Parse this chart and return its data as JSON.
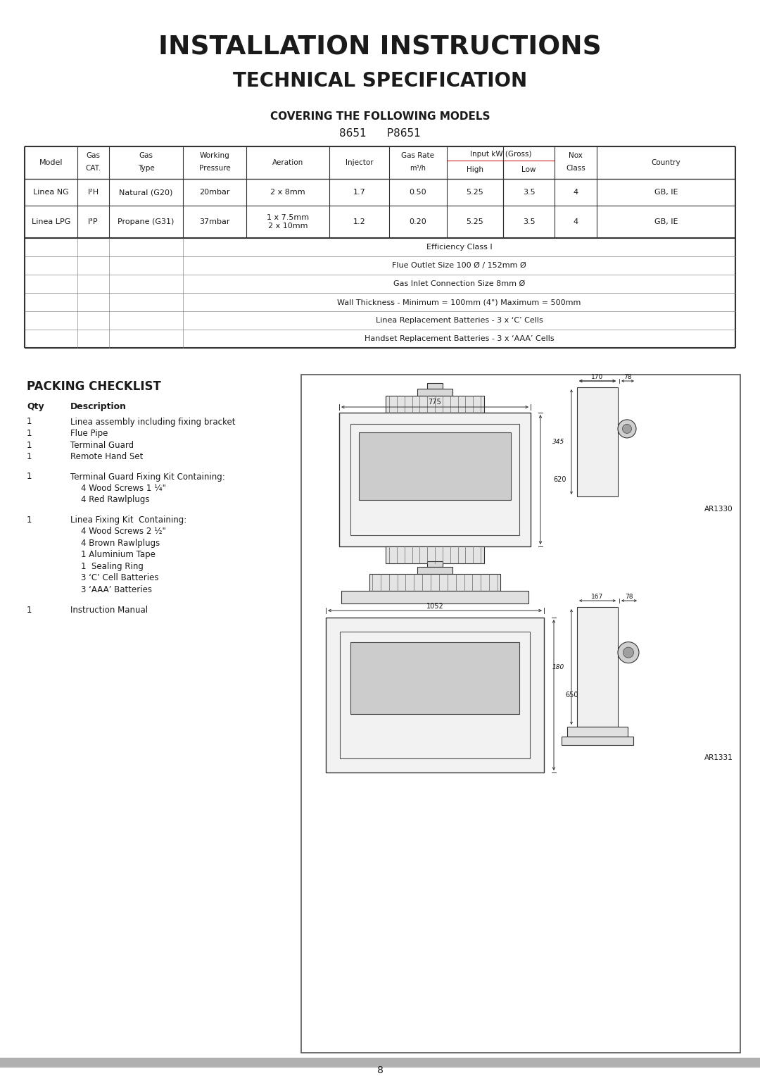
{
  "title1": "INSTALLATION INSTRUCTIONS",
  "title2": "TECHNICAL SPECIFICATION",
  "covering_label": "COVERING THE FOLLOWING MODELS",
  "models": "8651      P8651",
  "table_data": [
    [
      "Linea NG",
      "I²H",
      "Natural (G20)",
      "20mbar",
      "2 x 8mm",
      "1.7",
      "0.50",
      "5.25",
      "3.5",
      "4",
      "GB, IE"
    ],
    [
      "Linea LPG",
      "I³P",
      "Propane (G31)",
      "37mbar",
      "1 x 7.5mm\n2 x 10mm",
      "1.2",
      "0.20",
      "5.25",
      "3.5",
      "4",
      "GB, IE"
    ]
  ],
  "extra_rows": [
    "Efficiency Class I",
    "Flue Outlet Size 100 Ø / 152mm Ø",
    "Gas Inlet Connection Size 8mm Ø",
    "Wall Thickness - Minimum = 100mm (4\") Maximum = 500mm",
    "Linea Replacement Batteries - 3 x ‘C’ Cells",
    "Handset Replacement Batteries - 3 x ‘AAA’ Cells"
  ],
  "packing_title": "PACKING CHECKLIST",
  "packing_col1": "Qty",
  "packing_col2": "Description",
  "packing_items": [
    [
      "1",
      "Linea assembly including fixing bracket"
    ],
    [
      "1",
      "Flue Pipe"
    ],
    [
      "1",
      "Terminal Guard"
    ],
    [
      "1",
      "Remote Hand Set"
    ],
    [
      "gap",
      ""
    ],
    [
      "1",
      "Terminal Guard Fixing Kit Containing:"
    ],
    [
      "",
      "    4 Wood Screws 1 ¼\""
    ],
    [
      "",
      "    4 Red Rawlplugs"
    ],
    [
      "gap",
      ""
    ],
    [
      "1",
      "Linea Fixing Kit  Containing:"
    ],
    [
      "",
      "    4 Wood Screws 2 ½\""
    ],
    [
      "",
      "    4 Brown Rawlplugs"
    ],
    [
      "",
      "    1 Aluminium Tape"
    ],
    [
      "",
      "    1  Sealing Ring"
    ],
    [
      "",
      "    3 ‘C’ Cell Batteries"
    ],
    [
      "",
      "    3 ‘AAA’ Batteries"
    ],
    [
      "gap",
      ""
    ],
    [
      "1",
      "Instruction Manual"
    ]
  ],
  "page_number": "8",
  "bg_color": "#ffffff",
  "footer_bar_color": "#b0b0b0"
}
